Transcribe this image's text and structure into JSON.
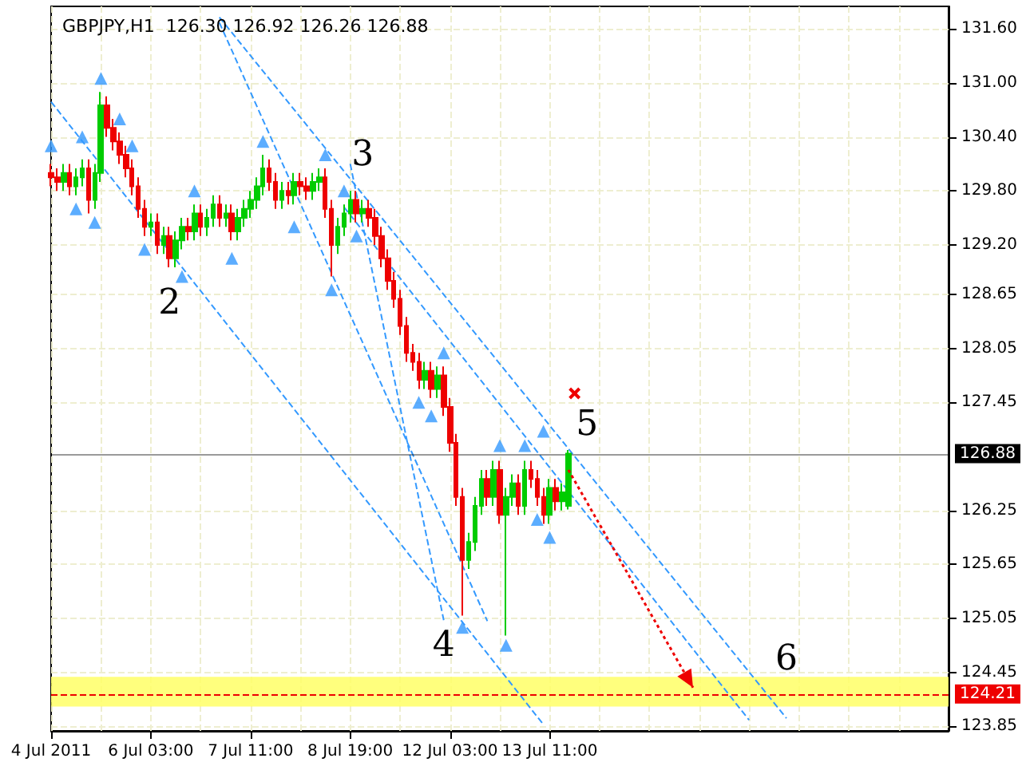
{
  "chart_data": {
    "type": "candlestick",
    "title": "GBPJPY,H1  126.30 126.92 126.26 126.88",
    "categories": [
      "4 Jul 2011",
      null,
      null,
      null,
      null,
      null,
      null,
      null,
      null,
      null,
      null,
      null,
      null,
      null,
      null,
      null,
      "6 Jul 03:00",
      null,
      null,
      null,
      null,
      null,
      null,
      null,
      null,
      null,
      null,
      null,
      null,
      null,
      null,
      null,
      "7 Jul 11:00",
      null,
      null,
      null,
      null,
      null,
      null,
      null,
      null,
      null,
      null,
      null,
      null,
      null,
      null,
      null,
      "8 Jul 19:00",
      null,
      null,
      null,
      null,
      null,
      null,
      null,
      null,
      null,
      null,
      null,
      null,
      null,
      null,
      null,
      "12 Jul 03:00",
      null,
      null,
      null,
      null,
      null,
      null,
      null,
      null,
      null,
      null,
      null,
      null,
      null,
      null,
      null,
      "13 Jul 11:00",
      null,
      null,
      null,
      null,
      null,
      null,
      null,
      null,
      null,
      null,
      null,
      null,
      null,
      null,
      null,
      null,
      null,
      null,
      null,
      null,
      null,
      null,
      null,
      null,
      null,
      null,
      null,
      null,
      null,
      null,
      null,
      null,
      null,
      null,
      null,
      null,
      null,
      null,
      null,
      null,
      null,
      null,
      null,
      null,
      null,
      null,
      null,
      null,
      null,
      null,
      null,
      null,
      null,
      null,
      null,
      null,
      null,
      null,
      null,
      null,
      null,
      null,
      null,
      null
    ],
    "colors": [
      "#ee0000",
      "#ee0000",
      "#00cc00",
      "#ee0000",
      "#00cc00",
      "#00cc00",
      "#ee0000",
      "#00cc00",
      "#00cc00",
      "#ee0000",
      "#ee0000",
      "#ee0000",
      "#ee0000",
      "#ee0000",
      "#ee0000",
      "#ee0000",
      "#00cc00",
      "#ee0000",
      "#00cc00",
      "#ee0000",
      "#00cc00",
      "#00cc00",
      "#ee0000",
      "#00cc00",
      "#ee0000",
      "#00cc00",
      "#00cc00",
      "#ee0000",
      "#00cc00",
      "#ee0000",
      "#00cc00",
      "#00cc00",
      "#00cc00",
      "#00cc00",
      "#00cc00",
      "#ee0000",
      "#ee0000",
      "#00cc00",
      "#ee0000",
      "#00cc00",
      "#ee0000",
      "#ee0000",
      "#00cc00",
      "#00cc00",
      "#ee0000",
      "#ee0000",
      "#00cc00",
      "#00cc00",
      "#00cc00",
      "#ee0000",
      "#00cc00",
      "#ee0000",
      "#ee0000",
      "#ee0000",
      "#ee0000",
      "#ee0000",
      "#ee0000",
      "#ee0000",
      "#ee0000",
      "#ee0000",
      "#00cc00",
      "#ee0000",
      "#00cc00",
      "#ee0000",
      "#ee0000",
      "#ee0000",
      "#ee0000",
      "#00cc00",
      "#00cc00",
      "#00cc00",
      "#ee0000",
      "#00cc00",
      "#ee0000",
      "#00cc00",
      "#00cc00",
      "#ee0000",
      "#00cc00",
      "#ee0000",
      "#ee0000",
      "#ee0000",
      "#00cc00",
      "#ee0000",
      "#00cc00",
      "#00cc00",
      null,
      null,
      null,
      null,
      null,
      null,
      null,
      null,
      null,
      null,
      null,
      null,
      null,
      null,
      null,
      null,
      null,
      null,
      null,
      null,
      null,
      null,
      null,
      null,
      null,
      null,
      null,
      null,
      null,
      null,
      null,
      null,
      null,
      null,
      null,
      null,
      null,
      null,
      null,
      null,
      null,
      null,
      null,
      null,
      null,
      null,
      null,
      null,
      null,
      null,
      null,
      null,
      null,
      null,
      null,
      null,
      null,
      null,
      null,
      null,
      null
    ],
    "ohlc": [
      [
        130.0,
        130.1,
        129.85,
        129.95
      ],
      [
        129.95,
        130.05,
        129.8,
        129.9
      ],
      [
        129.9,
        130.1,
        129.8,
        130.0
      ],
      [
        130.0,
        130.1,
        129.75,
        129.85
      ],
      [
        129.85,
        130.05,
        129.75,
        129.95
      ],
      [
        129.95,
        130.15,
        129.85,
        130.05
      ],
      [
        130.05,
        130.15,
        129.55,
        129.7
      ],
      [
        129.7,
        130.1,
        129.6,
        130.0
      ],
      [
        130.0,
        130.9,
        129.9,
        130.75
      ],
      [
        130.75,
        130.85,
        130.4,
        130.5
      ],
      [
        130.5,
        130.6,
        130.25,
        130.35
      ],
      [
        130.35,
        130.45,
        130.1,
        130.2
      ],
      [
        130.2,
        130.3,
        129.95,
        130.05
      ],
      [
        130.05,
        130.15,
        129.75,
        129.85
      ],
      [
        129.85,
        129.95,
        129.5,
        129.6
      ],
      [
        129.6,
        129.7,
        129.3,
        129.4
      ],
      [
        129.4,
        129.55,
        129.3,
        129.45
      ],
      [
        129.45,
        129.55,
        129.1,
        129.2
      ],
      [
        129.2,
        129.4,
        129.1,
        129.3
      ],
      [
        129.3,
        129.4,
        128.95,
        129.05
      ],
      [
        129.05,
        129.35,
        128.95,
        129.25
      ],
      [
        129.25,
        129.5,
        129.15,
        129.4
      ],
      [
        129.4,
        129.5,
        129.25,
        129.35
      ],
      [
        129.35,
        129.65,
        129.25,
        129.55
      ],
      [
        129.55,
        129.65,
        129.3,
        129.4
      ],
      [
        129.4,
        129.6,
        129.3,
        129.5
      ],
      [
        129.5,
        129.75,
        129.4,
        129.65
      ],
      [
        129.65,
        129.75,
        129.4,
        129.5
      ],
      [
        129.5,
        129.65,
        129.4,
        129.55
      ],
      [
        129.55,
        129.65,
        129.25,
        129.35
      ],
      [
        129.35,
        129.6,
        129.25,
        129.5
      ],
      [
        129.5,
        129.7,
        129.4,
        129.6
      ],
      [
        129.6,
        129.8,
        129.5,
        129.7
      ],
      [
        129.7,
        129.95,
        129.6,
        129.85
      ],
      [
        129.85,
        130.2,
        129.75,
        130.05
      ],
      [
        130.05,
        130.15,
        129.8,
        129.9
      ],
      [
        129.9,
        130.0,
        129.6,
        129.7
      ],
      [
        129.7,
        129.9,
        129.6,
        129.8
      ],
      [
        129.8,
        129.9,
        129.65,
        129.75
      ],
      [
        129.75,
        130.0,
        129.65,
        129.9
      ],
      [
        129.9,
        130.0,
        129.75,
        129.85
      ],
      [
        129.85,
        129.95,
        129.7,
        129.8
      ],
      [
        129.8,
        130.0,
        129.7,
        129.9
      ],
      [
        129.9,
        130.05,
        129.8,
        129.95
      ],
      [
        129.95,
        130.05,
        129.5,
        129.6
      ],
      [
        129.6,
        129.7,
        128.85,
        129.2
      ],
      [
        129.2,
        129.5,
        129.1,
        129.4
      ],
      [
        129.4,
        129.65,
        129.3,
        129.55
      ],
      [
        129.55,
        129.8,
        129.45,
        129.7
      ],
      [
        129.7,
        129.8,
        129.45,
        129.55
      ],
      [
        129.55,
        129.7,
        129.45,
        129.6
      ],
      [
        129.6,
        129.7,
        129.4,
        129.5
      ],
      [
        129.5,
        129.6,
        129.2,
        129.3
      ],
      [
        129.3,
        129.4,
        128.95,
        129.05
      ],
      [
        129.05,
        129.15,
        128.7,
        128.8
      ],
      [
        128.8,
        128.9,
        128.5,
        128.6
      ],
      [
        128.6,
        128.7,
        128.2,
        128.3
      ],
      [
        128.3,
        128.4,
        127.9,
        128.0
      ],
      [
        128.0,
        128.1,
        127.8,
        127.9
      ],
      [
        127.9,
        128.0,
        127.6,
        127.7
      ],
      [
        127.7,
        127.9,
        127.6,
        127.8
      ],
      [
        127.8,
        127.9,
        127.5,
        127.6
      ],
      [
        127.6,
        127.85,
        127.5,
        127.75
      ],
      [
        127.75,
        127.85,
        127.3,
        127.4
      ],
      [
        127.4,
        127.5,
        126.9,
        127.0
      ],
      [
        127.0,
        127.1,
        126.3,
        126.4
      ],
      [
        126.4,
        126.5,
        125.08,
        125.7
      ],
      [
        125.7,
        126.0,
        125.6,
        125.9
      ],
      [
        125.9,
        126.4,
        125.8,
        126.3
      ],
      [
        126.3,
        126.7,
        126.2,
        126.6
      ],
      [
        126.6,
        126.7,
        126.3,
        126.4
      ],
      [
        126.4,
        126.8,
        126.3,
        126.7
      ],
      [
        126.7,
        126.8,
        126.1,
        126.2
      ],
      [
        126.2,
        126.5,
        124.86,
        126.4
      ],
      [
        126.4,
        126.65,
        126.3,
        126.55
      ],
      [
        126.55,
        126.65,
        126.2,
        126.3
      ],
      [
        126.3,
        126.8,
        126.2,
        126.7
      ],
      [
        126.7,
        126.8,
        126.5,
        126.6
      ],
      [
        126.6,
        126.7,
        126.3,
        126.4
      ],
      [
        126.4,
        126.5,
        126.1,
        126.2
      ],
      [
        126.2,
        126.6,
        126.1,
        126.5
      ],
      [
        126.5,
        126.6,
        126.25,
        126.35
      ],
      [
        126.35,
        126.55,
        126.25,
        126.45
      ],
      [
        126.3,
        126.92,
        126.26,
        126.88
      ],
      null,
      null,
      null,
      null,
      null,
      null,
      null,
      null,
      null,
      null,
      null,
      null,
      null,
      null,
      null,
      null,
      null,
      null,
      null,
      null,
      null,
      null,
      null,
      null,
      null,
      null,
      null,
      null,
      null,
      null,
      null,
      null,
      null,
      null,
      null,
      null,
      null,
      null,
      null,
      null,
      null,
      null,
      null,
      null,
      null,
      null,
      null,
      null,
      null,
      null,
      null,
      null,
      null,
      null,
      null,
      null,
      null,
      null,
      null,
      null,
      null
    ],
    "series": [
      {
        "type": "line",
        "color": "#3399ff",
        "line_style": "dashed",
        "values": [
          null,
          null,
          null,
          null,
          null,
          null,
          null,
          null,
          null,
          null,
          null,
          null,
          null,
          null,
          null,
          null,
          null,
          null,
          null,
          null,
          null,
          null,
          null,
          null,
          null,
          null,
          null,
          131.73,
          null,
          null,
          null,
          null,
          null,
          null,
          null,
          null,
          null,
          null,
          null,
          null,
          null,
          null,
          null,
          null,
          null,
          null,
          null,
          null,
          null,
          null,
          null,
          null,
          null,
          null,
          null,
          null,
          null,
          null,
          null,
          null,
          null,
          null,
          null,
          null,
          null,
          null,
          null,
          null,
          null,
          null,
          null,
          null,
          null,
          null,
          null,
          null,
          null,
          null,
          null,
          null,
          null,
          null,
          null,
          null,
          null,
          null,
          null,
          null,
          null,
          null,
          null,
          null,
          null,
          null,
          null,
          null,
          null,
          null,
          null,
          null,
          null,
          null,
          null,
          null,
          null,
          null,
          null,
          null,
          null,
          null,
          null,
          null,
          null,
          null,
          null,
          null,
          null,
          null,
          123.94,
          null,
          null,
          null,
          null,
          null,
          null,
          null,
          null,
          null,
          null,
          null,
          null,
          null,
          null,
          null,
          null,
          null,
          null,
          null,
          null,
          null,
          null,
          null,
          null,
          null,
          null
        ]
      },
      {
        "type": "line",
        "color": "#3399ff",
        "line_style": "dashed",
        "values": [
          null,
          null,
          null,
          null,
          null,
          null,
          null,
          null,
          null,
          null,
          null,
          null,
          null,
          null,
          null,
          null,
          null,
          null,
          null,
          null,
          null,
          null,
          null,
          null,
          null,
          null,
          null,
          null,
          null,
          null,
          null,
          null,
          null,
          null,
          null,
          null,
          null,
          null,
          null,
          null,
          null,
          null,
          null,
          null,
          null,
          null,
          null,
          129.62,
          null,
          null,
          null,
          null,
          null,
          null,
          null,
          null,
          null,
          null,
          null,
          null,
          null,
          null,
          null,
          null,
          null,
          null,
          null,
          null,
          null,
          null,
          null,
          null,
          null,
          null,
          null,
          null,
          null,
          null,
          null,
          null,
          null,
          null,
          null,
          null,
          null,
          null,
          null,
          null,
          null,
          null,
          null,
          null,
          null,
          null,
          null,
          null,
          null,
          null,
          null,
          null,
          null,
          null,
          null,
          null,
          null,
          null,
          null,
          null,
          null,
          null,
          null,
          null,
          123.92,
          null,
          null,
          null,
          null,
          null,
          null,
          null,
          null,
          null,
          null,
          null,
          null,
          null,
          null,
          null,
          null,
          null,
          null,
          null,
          null,
          null,
          null,
          null,
          null,
          null,
          null,
          null,
          null,
          null,
          null,
          null,
          null
        ]
      },
      {
        "type": "line",
        "color": "#3399ff",
        "line_style": "dashed",
        "values": [
          130.79,
          null,
          null,
          null,
          null,
          null,
          null,
          null,
          null,
          null,
          null,
          null,
          null,
          null,
          null,
          null,
          null,
          null,
          null,
          null,
          null,
          null,
          null,
          null,
          null,
          null,
          null,
          null,
          null,
          null,
          null,
          null,
          null,
          null,
          null,
          null,
          null,
          null,
          null,
          null,
          null,
          null,
          null,
          null,
          null,
          null,
          null,
          null,
          null,
          null,
          null,
          null,
          null,
          null,
          null,
          null,
          null,
          null,
          null,
          null,
          null,
          null,
          null,
          null,
          null,
          null,
          null,
          null,
          null,
          null,
          null,
          null,
          null,
          null,
          null,
          null,
          null,
          null,
          null,
          123.87,
          null,
          null,
          null,
          null,
          null,
          null,
          null,
          null,
          null,
          null,
          null,
          null,
          null,
          null,
          null,
          null,
          null,
          null,
          null,
          null,
          null,
          null,
          null,
          null,
          null,
          null,
          null,
          null,
          null,
          null,
          null,
          null,
          null,
          null,
          null,
          null,
          null,
          null,
          null,
          null,
          null,
          null,
          null,
          null,
          null,
          null,
          null,
          null,
          null,
          null,
          null,
          null,
          null,
          null,
          null,
          null,
          null,
          null,
          null,
          null,
          null,
          null,
          null,
          null,
          null
        ]
      },
      {
        "type": "line",
        "color": "#3399ff",
        "line_style": "dashed",
        "values": [
          null,
          null,
          null,
          null,
          null,
          null,
          null,
          null,
          null,
          null,
          null,
          null,
          null,
          null,
          null,
          null,
          null,
          null,
          null,
          null,
          null,
          null,
          null,
          null,
          null,
          null,
          null,
          131.67,
          null,
          null,
          null,
          null,
          null,
          null,
          null,
          null,
          null,
          null,
          null,
          null,
          null,
          null,
          null,
          null,
          null,
          null,
          null,
          null,
          null,
          null,
          null,
          null,
          null,
          null,
          null,
          null,
          null,
          null,
          null,
          null,
          null,
          null,
          null,
          null,
          null,
          null,
          null,
          null,
          null,
          null,
          125.02,
          null,
          null,
          null,
          null,
          null,
          null,
          null,
          null,
          null,
          null,
          null,
          null,
          null,
          null,
          null,
          null,
          null,
          null,
          null,
          null,
          null,
          null,
          null,
          null,
          null,
          null,
          null,
          null,
          null,
          null,
          null,
          null,
          null,
          null,
          null,
          null,
          null,
          null,
          null,
          null,
          null,
          null,
          null,
          null,
          null,
          null,
          null,
          null,
          null,
          null,
          null,
          null,
          null,
          null,
          null,
          null,
          null,
          null,
          null,
          null,
          null,
          null,
          null,
          null,
          null,
          null,
          null,
          null,
          null,
          null,
          null,
          null,
          null,
          null
        ]
      },
      {
        "type": "line",
        "color": "#3399ff",
        "line_style": "dashed",
        "values": [
          null,
          null,
          null,
          null,
          null,
          null,
          null,
          null,
          null,
          null,
          null,
          null,
          null,
          null,
          null,
          null,
          null,
          null,
          null,
          null,
          null,
          null,
          null,
          null,
          null,
          null,
          null,
          null,
          null,
          null,
          null,
          null,
          null,
          null,
          null,
          null,
          null,
          null,
          null,
          null,
          null,
          null,
          null,
          null,
          null,
          null,
          null,
          null,
          130.1,
          null,
          null,
          null,
          null,
          null,
          null,
          null,
          null,
          null,
          null,
          null,
          null,
          null,
          null,
          125.03,
          null,
          null,
          null,
          null,
          null,
          null,
          null,
          null,
          null,
          null,
          null,
          null,
          null,
          null,
          null,
          null,
          null,
          null,
          null,
          null,
          null,
          null,
          null,
          null,
          null,
          null,
          null,
          null,
          null,
          null,
          null,
          null,
          null,
          null,
          null,
          null,
          null,
          null,
          null,
          null,
          null,
          null,
          null,
          null,
          null,
          null,
          null,
          null,
          null,
          null,
          null,
          null,
          null,
          null,
          null,
          null,
          null,
          null,
          null,
          null,
          null,
          null,
          null,
          null,
          null,
          null,
          null,
          null,
          null,
          null,
          null,
          null,
          null,
          null,
          null,
          null,
          null,
          null,
          null,
          null,
          null
        ]
      },
      {
        "type": "scatter",
        "color": "#3399ff",
        "marker": "triangle",
        "values": [
          130.3,
          null,
          null,
          null,
          null,
          130.4,
          null,
          null,
          131.05,
          null,
          null,
          130.6,
          null,
          130.3,
          null,
          null,
          null,
          null,
          null,
          null,
          null,
          null,
          null,
          129.8,
          null,
          null,
          null,
          null,
          null,
          null,
          null,
          null,
          null,
          null,
          130.35,
          null,
          null,
          null,
          null,
          null,
          null,
          null,
          null,
          null,
          130.2,
          null,
          null,
          129.8,
          null,
          null,
          null,
          null,
          null,
          null,
          null,
          null,
          null,
          null,
          null,
          null,
          null,
          null,
          null,
          128.0,
          null,
          null,
          null,
          null,
          null,
          null,
          null,
          null,
          126.97,
          null,
          null,
          null,
          126.97,
          null,
          null,
          127.13,
          null,
          null,
          null,
          null,
          null,
          null,
          null,
          null,
          null,
          null,
          null,
          null,
          null,
          null,
          null,
          null,
          null,
          null,
          null,
          null,
          null,
          null,
          null,
          null,
          null,
          null,
          null,
          null,
          null,
          null,
          null,
          null,
          null,
          null,
          null,
          null,
          null,
          null,
          null,
          null,
          null,
          null,
          null,
          null,
          null,
          null,
          null,
          null,
          null,
          null,
          null,
          null,
          null,
          null,
          null,
          null,
          null,
          null,
          null,
          null,
          null,
          null,
          null,
          null,
          null
        ]
      },
      {
        "type": "scatter",
        "color": "#3399ff",
        "marker": "triangle",
        "values": [
          null,
          null,
          null,
          null,
          129.6,
          null,
          null,
          129.45,
          null,
          null,
          null,
          null,
          null,
          null,
          null,
          129.15,
          null,
          null,
          null,
          null,
          null,
          128.85,
          null,
          null,
          null,
          null,
          null,
          null,
          null,
          129.05,
          null,
          null,
          null,
          null,
          null,
          null,
          null,
          null,
          null,
          129.4,
          null,
          null,
          null,
          null,
          null,
          128.7,
          null,
          null,
          null,
          129.3,
          null,
          null,
          null,
          null,
          null,
          null,
          null,
          null,
          null,
          127.45,
          null,
          127.3,
          null,
          null,
          null,
          null,
          124.95,
          null,
          null,
          null,
          null,
          null,
          null,
          124.75,
          null,
          null,
          null,
          null,
          126.15,
          null,
          125.95,
          null,
          null,
          null,
          null,
          null,
          null,
          null,
          null,
          null,
          null,
          null,
          null,
          null,
          null,
          null,
          null,
          null,
          null,
          null,
          null,
          null,
          null,
          null,
          null,
          null,
          null,
          null,
          null,
          null,
          null,
          null,
          null,
          null,
          null,
          null,
          null,
          null,
          null,
          null,
          null,
          null,
          null,
          null,
          null,
          null,
          null,
          null,
          null,
          null,
          null,
          null,
          null,
          null,
          null,
          null,
          null,
          null,
          null,
          null,
          null,
          null,
          null,
          null,
          null
        ]
      }
    ],
    "ylim": [
      123.8,
      131.85
    ],
    "yticks": [
      {
        "value": 131.6,
        "label": "131.60"
      },
      {
        "value": 131.0,
        "label": "131.00"
      },
      {
        "value": 130.4,
        "label": "130.40"
      },
      {
        "value": 129.8,
        "label": "129.80"
      },
      {
        "value": 129.2,
        "label": "129.20"
      },
      {
        "value": 128.65,
        "label": "128.65"
      },
      {
        "value": 128.05,
        "label": "128.05"
      },
      {
        "value": 127.45,
        "label": "127.45"
      },
      {
        "value": 126.25,
        "label": "126.25"
      },
      {
        "value": 125.65,
        "label": "125.65"
      },
      {
        "value": 125.05,
        "label": "125.05"
      },
      {
        "value": 124.45,
        "label": "124.45"
      },
      {
        "value": 123.85,
        "label": "123.85"
      }
    ],
    "ref_lines": [
      {
        "axis": "y",
        "value": 126.88,
        "label": "126.88",
        "color": "#000000",
        "line_style": "solid"
      },
      {
        "axis": "y",
        "value": 124.21,
        "label": "124.21",
        "color": "#ee0000",
        "line_style": "dashed"
      }
    ],
    "bands": [
      {
        "axis": "y",
        "from": 124.07,
        "to": 124.4,
        "color": "#ffff66"
      }
    ],
    "annotations": [
      "2",
      "3",
      "4",
      "5",
      "6"
    ],
    "grid": true
  }
}
